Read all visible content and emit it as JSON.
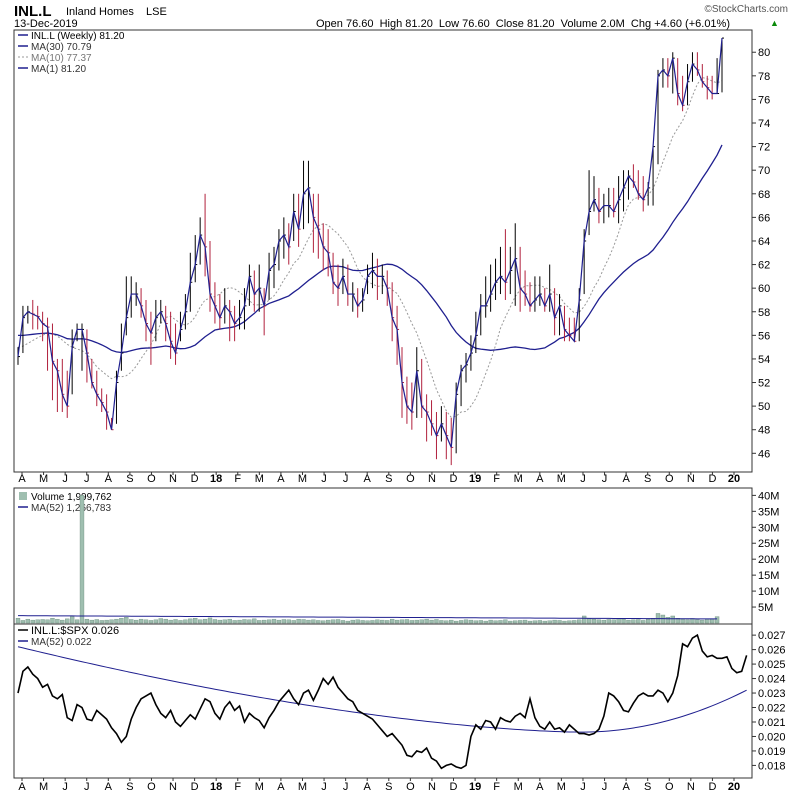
{
  "header": {
    "symbol": "INL.L",
    "name": "Inland Homes",
    "exchange": "LSE",
    "date": "13-Dec-2019",
    "quote": "Open 76.60  High 81.20  Low 76.60  Close 81.20  Volume 2.0M  Chg +4.60 (+6.01%)",
    "quote_arrow": "▲",
    "brand": "©StockCharts.com"
  },
  "colors": {
    "up": "#000000",
    "down": "#b0203c",
    "ma_long": "#1f1f8f",
    "ma_short": "#999999",
    "volume": "#9fbfb0",
    "ratio": "#000000"
  },
  "chart_data": [
    {
      "type": "line",
      "panel": "price",
      "style": "ohlc-bars",
      "legend": [
        {
          "label": "INL.L (Weekly) 81.20",
          "color": "#1f1f8f",
          "dash": false
        },
        {
          "label": "MA(30) 70.79",
          "color": "#1f1f8f",
          "dash": false
        },
        {
          "label": "MA(10) 77.37",
          "color": "#999999",
          "dash": true
        },
        {
          "label": "MA(1) 81.20",
          "color": "#1f1f8f",
          "dash": false
        }
      ],
      "ylim": [
        44.5,
        81.8
      ],
      "yticks": [
        46,
        48,
        50,
        52,
        54,
        56,
        58,
        60,
        62,
        64,
        66,
        68,
        70,
        72,
        74,
        76,
        78,
        80
      ],
      "close": [
        54.2,
        57.5,
        58,
        57.8,
        57.6,
        57,
        56.7,
        53.8,
        53,
        51,
        50,
        55,
        56.5,
        56.5,
        54.5,
        52,
        51,
        50.3,
        49.5,
        48,
        52,
        54.5,
        57.5,
        59.5,
        59.5,
        58.5,
        57,
        56.2,
        57.5,
        58,
        57,
        55.5,
        54.5,
        56.5,
        58,
        60.5,
        62,
        64.5,
        63.5,
        59.5,
        58.5,
        57.5,
        58.5,
        58,
        57,
        57.5,
        58.5,
        61,
        59.5,
        60,
        58.5,
        61.5,
        62,
        64,
        64.5,
        63.5,
        66.5,
        65,
        68,
        68.5,
        66,
        65,
        63.5,
        63,
        60.5,
        60,
        61,
        59.5,
        59.5,
        58.5,
        59,
        61,
        61.5,
        61,
        61,
        60,
        57.5,
        56.5,
        52,
        50,
        49.5,
        53,
        50,
        49.5,
        48.5,
        47.5,
        48.5,
        47.5,
        46.5,
        51,
        53,
        53.5,
        54.5,
        56,
        58.5,
        58.5,
        59.5,
        60.5,
        61,
        60.5,
        61.5,
        62.5,
        60,
        59.5,
        58.5,
        59,
        59.5,
        58.5,
        59.5,
        57.5,
        58.5,
        56.5,
        56,
        55.5,
        59,
        64,
        66.5,
        67.5,
        66.5,
        67,
        67,
        66.5,
        67.5,
        68.5,
        69.5,
        69,
        68,
        67.5,
        68.5,
        72,
        78,
        78.5,
        78,
        79.5,
        76.5,
        75.5,
        77.5,
        79,
        78.5,
        77.5,
        77,
        76.5,
        76.5,
        81.2
      ],
      "high": [
        55,
        58.5,
        58.5,
        59,
        58.5,
        58,
        57.5,
        57,
        54,
        54,
        53,
        56.5,
        57,
        57,
        56.5,
        54,
        53,
        51.5,
        51,
        49,
        53,
        57,
        61,
        61,
        60.5,
        60,
        59,
        58,
        59,
        59,
        58.5,
        58,
        57,
        58,
        59.5,
        63,
        64.5,
        66,
        68,
        64,
        60.5,
        59.5,
        60,
        59,
        58.5,
        59,
        60,
        62,
        61.5,
        62,
        60,
        63,
        63.5,
        65,
        66,
        65.5,
        68,
        68,
        70.8,
        70.8,
        68,
        68,
        65.5,
        65,
        63,
        62,
        62.5,
        62,
        60.5,
        60,
        60,
        62,
        63,
        62.5,
        62,
        61.5,
        60.5,
        58.5,
        55,
        52.5,
        52,
        55,
        54,
        51,
        50.5,
        49.5,
        50,
        49.5,
        49,
        52,
        53.5,
        54.5,
        56,
        58,
        59.5,
        61,
        62,
        62.5,
        63.5,
        65,
        63.5,
        65.5,
        63.5,
        61.5,
        60.5,
        61,
        61,
        60,
        62,
        60,
        59.5,
        58.5,
        57.5,
        57.5,
        60,
        65,
        70,
        69.5,
        68.5,
        68,
        68.5,
        68.5,
        69.5,
        70,
        70,
        70.5,
        70,
        69.5,
        69,
        72,
        78.5,
        79.5,
        79.5,
        80,
        79.5,
        78,
        79,
        80,
        80,
        79,
        78,
        78,
        79.5,
        81.2
      ],
      "low": [
        53.5,
        54.5,
        57,
        56.5,
        56.5,
        55.5,
        53,
        50.5,
        49.5,
        49.5,
        49,
        51,
        55.5,
        53,
        52,
        51.5,
        50,
        49.5,
        48,
        48,
        48.5,
        53,
        56,
        57.5,
        58.5,
        57.5,
        55.5,
        53.5,
        55.5,
        57,
        55.5,
        54,
        53.5,
        55.5,
        56.5,
        58,
        60.5,
        62,
        61,
        58,
        57,
        56.5,
        57,
        55.5,
        55.5,
        56.5,
        56.5,
        58.5,
        58,
        58,
        56,
        59,
        60,
        61.5,
        62.5,
        62,
        64,
        63.5,
        65,
        65.5,
        63,
        62.5,
        61.5,
        61,
        59.5,
        58.5,
        59.5,
        58.5,
        58,
        57.5,
        58,
        59.5,
        60,
        59,
        59.5,
        58.5,
        55.5,
        53.5,
        49,
        48.5,
        48,
        49,
        49,
        47,
        47.5,
        45.5,
        47,
        45.5,
        45,
        46,
        50,
        52,
        53,
        54.5,
        56,
        57.5,
        58,
        59,
        59.5,
        59,
        59.5,
        58.5,
        58,
        58.5,
        58,
        58,
        58.5,
        58,
        58,
        56,
        56,
        55.5,
        55.5,
        55.5,
        55.5,
        59.5,
        64.5,
        66.5,
        65.5,
        65.5,
        66,
        66,
        65.5,
        66.5,
        67.5,
        68.5,
        67.5,
        66.5,
        67,
        67,
        70.5,
        77,
        77,
        76.5,
        75.5,
        75,
        75.5,
        77.5,
        78,
        77,
        76,
        76,
        76.5,
        76.6
      ],
      "ma30_open": 56.0,
      "ma10_open": 55.0
    },
    {
      "type": "bar",
      "panel": "volume",
      "legend": [
        {
          "label": "Volume 1,999,762",
          "color": "#9fbfb0"
        },
        {
          "label": "MA(52) 1,266,783",
          "color": "#1f1f8f"
        }
      ],
      "ylim": [
        0,
        42
      ],
      "units": "M",
      "ytick_labels": [
        "5M",
        "10M",
        "15M",
        "20M",
        "25M",
        "30M",
        "35M",
        "40M"
      ],
      "ytick_values": [
        5,
        10,
        15,
        20,
        25,
        30,
        35,
        40
      ],
      "values": [
        1.5,
        0.8,
        1.2,
        0.9,
        1.0,
        1.1,
        1.0,
        1.5,
        1.2,
        0.9,
        1.3,
        2.0,
        1.0,
        40.0,
        1.2,
        0.9,
        1.1,
        0.8,
        0.9,
        1.0,
        1.2,
        1.5,
        1.8,
        1.1,
        0.9,
        1.2,
        1.0,
        0.8,
        1.0,
        1.4,
        1.2,
        0.9,
        1.1,
        0.8,
        1.0,
        1.3,
        1.5,
        1.0,
        1.2,
        1.6,
        1.1,
        0.9,
        1.0,
        1.2,
        0.8,
        0.9,
        1.1,
        1.0,
        1.3,
        0.8,
        0.9,
        1.0,
        1.2,
        0.9,
        1.1,
        1.0,
        0.8,
        1.2,
        1.1,
        0.9,
        1.0,
        0.8,
        0.7,
        0.9,
        1.0,
        1.1,
        0.8,
        0.6,
        0.9,
        1.0,
        0.8,
        0.7,
        0.8,
        1.0,
        0.9,
        0.8,
        1.2,
        0.9,
        1.0,
        1.1,
        0.8,
        0.9,
        1.0,
        1.2,
        0.9,
        1.1,
        0.8,
        0.7,
        0.9,
        0.6,
        0.8,
        1.0,
        0.9,
        0.7,
        0.8,
        0.6,
        0.9,
        0.7,
        0.8,
        1.0,
        0.6,
        0.7,
        0.8,
        0.9,
        0.6,
        0.7,
        0.8,
        0.6,
        0.7,
        0.9,
        0.8,
        0.6,
        0.7,
        0.8,
        1.0,
        2.2,
        1.5,
        1.2,
        1.0,
        0.9,
        1.1,
        1.0,
        1.3,
        1.2,
        0.9,
        1.0,
        1.1,
        0.8,
        1.2,
        1.5,
        3.0,
        2.5,
        1.8,
        2.2,
        1.5,
        1.2,
        1.0,
        1.4,
        1.1,
        0.9,
        1.3,
        1.2,
        2.0
      ],
      "ma52_start": 2.3,
      "ma52_end": 1.27
    },
    {
      "type": "line",
      "panel": "ratio",
      "legend": [
        {
          "label": "INL.L:$SPX 0.026",
          "color": "#000000"
        },
        {
          "label": "MA(52) 0.022",
          "color": "#1f1f8f"
        }
      ],
      "ylim": [
        0.0172,
        0.0277
      ],
      "yticks": [
        0.018,
        0.019,
        0.02,
        0.021,
        0.022,
        0.023,
        0.024,
        0.025,
        0.026,
        0.027
      ],
      "ytick_labels": [
        "0.018",
        "0.019",
        "0.020",
        "0.021",
        "0.022",
        "0.023",
        "0.024",
        "0.025",
        "0.026",
        "0.027"
      ],
      "values": [
        0.023,
        0.0245,
        0.0248,
        0.0243,
        0.024,
        0.0234,
        0.0236,
        0.0228,
        0.0226,
        0.0229,
        0.0213,
        0.0211,
        0.0222,
        0.022,
        0.0212,
        0.0211,
        0.0218,
        0.0215,
        0.0212,
        0.0206,
        0.0202,
        0.0196,
        0.02,
        0.0212,
        0.022,
        0.0226,
        0.0228,
        0.023,
        0.0222,
        0.0216,
        0.0213,
        0.0218,
        0.021,
        0.0207,
        0.0211,
        0.0215,
        0.0212,
        0.0219,
        0.0226,
        0.0224,
        0.0216,
        0.0212,
        0.022,
        0.0224,
        0.0218,
        0.0221,
        0.021,
        0.0216,
        0.0213,
        0.0211,
        0.0206,
        0.0213,
        0.0218,
        0.0224,
        0.0228,
        0.0232,
        0.0226,
        0.0222,
        0.023,
        0.0232,
        0.0225,
        0.0232,
        0.024,
        0.0236,
        0.0241,
        0.0234,
        0.023,
        0.0226,
        0.0224,
        0.0218,
        0.0216,
        0.0214,
        0.0212,
        0.0208,
        0.0204,
        0.02,
        0.0202,
        0.0198,
        0.0194,
        0.0187,
        0.0186,
        0.019,
        0.0189,
        0.0192,
        0.0185,
        0.0183,
        0.0178,
        0.018,
        0.0181,
        0.0179,
        0.0178,
        0.018,
        0.02,
        0.0208,
        0.0205,
        0.0211,
        0.021,
        0.0205,
        0.0213,
        0.0211,
        0.021,
        0.0214,
        0.0216,
        0.0213,
        0.0226,
        0.0213,
        0.0207,
        0.0205,
        0.021,
        0.0205,
        0.0206,
        0.0203,
        0.0208,
        0.0205,
        0.0202,
        0.0202,
        0.0201,
        0.0202,
        0.0205,
        0.0214,
        0.023,
        0.0228,
        0.0224,
        0.0218,
        0.0217,
        0.0223,
        0.0228,
        0.023,
        0.0228,
        0.0228,
        0.0232,
        0.023,
        0.0224,
        0.023,
        0.0242,
        0.0264,
        0.0262,
        0.0268,
        0.027,
        0.0259,
        0.0255,
        0.0256,
        0.0254,
        0.0254,
        0.0255,
        0.0247,
        0.0244,
        0.0245,
        0.0256
      ],
      "ma52_start": 0.0262,
      "ma52_end": 0.0224
    }
  ],
  "x_axis": {
    "labels": [
      "A",
      "M",
      "J",
      "J",
      "A",
      "S",
      "O",
      "N",
      "D",
      "18",
      "F",
      "M",
      "A",
      "M",
      "J",
      "J",
      "A",
      "S",
      "O",
      "N",
      "D",
      "19",
      "F",
      "M",
      "A",
      "M",
      "J",
      "J",
      "A",
      "S",
      "O",
      "N",
      "D",
      "20"
    ],
    "bold": [
      "18",
      "19",
      "20"
    ]
  }
}
